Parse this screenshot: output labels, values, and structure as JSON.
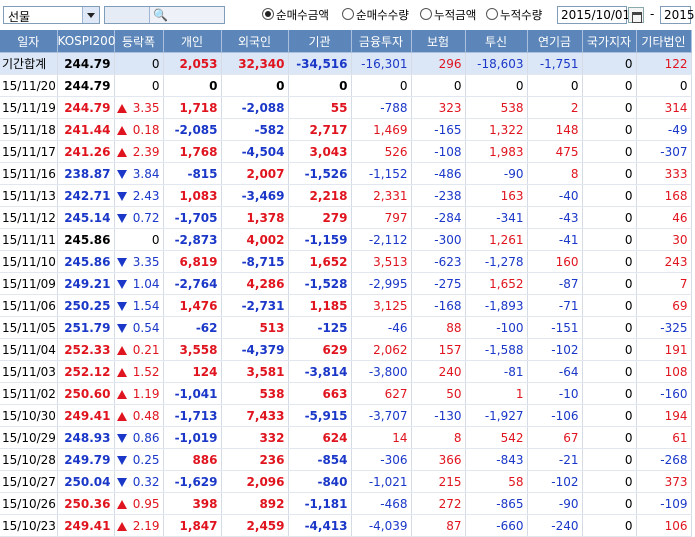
{
  "toolbar": {
    "market_select": "선물",
    "radios": [
      {
        "label": "순매수금액",
        "selected": true
      },
      {
        "label": "순매수수량",
        "selected": false
      },
      {
        "label": "누적금액",
        "selected": false
      },
      {
        "label": "누적수량",
        "selected": false
      }
    ],
    "start_date": "2015/10/01",
    "end_date": "2015"
  },
  "colors": {
    "header_bg": "#5c86b9",
    "up": "#e0141e",
    "down": "#1a37c8",
    "total_row_bg": "#dbe7f6"
  },
  "table": {
    "headers": [
      "일자",
      "KOSPI200",
      "등락폭",
      "개인",
      "외국인",
      "기관",
      "금융투자",
      "보험",
      "투신",
      "연기금",
      "국가지자",
      "기타법인"
    ],
    "rows": [
      {
        "date": "기간합계",
        "kospi": "244.79",
        "dir": "",
        "chg": "0",
        "ind": "2,053",
        "frn": "32,340",
        "inst": "-34,516",
        "fin": "-16,301",
        "ins": "296",
        "trust": "-18,603",
        "pen": "-1,751",
        "gov": "0",
        "etc": "122",
        "total": true
      },
      {
        "date": "15/11/20",
        "kospi": "244.79",
        "dir": "",
        "chg": "0",
        "ind": "0",
        "frn": "0",
        "inst": "0",
        "fin": "0",
        "ins": "0",
        "trust": "0",
        "pen": "0",
        "gov": "0",
        "etc": "0"
      },
      {
        "date": "15/11/19",
        "kospi": "244.79",
        "dir": "up",
        "chg": "3.35",
        "ind": "1,718",
        "frn": "-2,088",
        "inst": "55",
        "fin": "-788",
        "ins": "323",
        "trust": "538",
        "pen": "2",
        "gov": "0",
        "etc": "314"
      },
      {
        "date": "15/11/18",
        "kospi": "241.44",
        "dir": "up",
        "chg": "0.18",
        "ind": "-2,085",
        "frn": "-582",
        "inst": "2,717",
        "fin": "1,469",
        "ins": "-165",
        "trust": "1,322",
        "pen": "148",
        "gov": "0",
        "etc": "-49"
      },
      {
        "date": "15/11/17",
        "kospi": "241.26",
        "dir": "up",
        "chg": "2.39",
        "ind": "1,768",
        "frn": "-4,504",
        "inst": "3,043",
        "fin": "526",
        "ins": "-108",
        "trust": "1,983",
        "pen": "475",
        "gov": "0",
        "etc": "-307"
      },
      {
        "date": "15/11/16",
        "kospi": "238.87",
        "dir": "dn",
        "chg": "3.84",
        "ind": "-815",
        "frn": "2,007",
        "inst": "-1,526",
        "fin": "-1,152",
        "ins": "-486",
        "trust": "-90",
        "pen": "8",
        "gov": "0",
        "etc": "333"
      },
      {
        "date": "15/11/13",
        "kospi": "242.71",
        "dir": "dn",
        "chg": "2.43",
        "ind": "1,083",
        "frn": "-3,469",
        "inst": "2,218",
        "fin": "2,331",
        "ins": "-238",
        "trust": "163",
        "pen": "-40",
        "gov": "0",
        "etc": "168"
      },
      {
        "date": "15/11/12",
        "kospi": "245.14",
        "dir": "dn",
        "chg": "0.72",
        "ind": "-1,705",
        "frn": "1,378",
        "inst": "279",
        "fin": "797",
        "ins": "-284",
        "trust": "-341",
        "pen": "-43",
        "gov": "0",
        "etc": "46"
      },
      {
        "date": "15/11/11",
        "kospi": "245.86",
        "dir": "",
        "chg": "0",
        "ind": "-2,873",
        "frn": "4,002",
        "inst": "-1,159",
        "fin": "-2,112",
        "ins": "-300",
        "trust": "1,261",
        "pen": "-41",
        "gov": "0",
        "etc": "30"
      },
      {
        "date": "15/11/10",
        "kospi": "245.86",
        "dir": "dn",
        "chg": "3.35",
        "ind": "6,819",
        "frn": "-8,715",
        "inst": "1,652",
        "fin": "3,513",
        "ins": "-623",
        "trust": "-1,278",
        "pen": "160",
        "gov": "0",
        "etc": "243"
      },
      {
        "date": "15/11/09",
        "kospi": "249.21",
        "dir": "dn",
        "chg": "1.04",
        "ind": "-2,764",
        "frn": "4,286",
        "inst": "-1,528",
        "fin": "-2,995",
        "ins": "-275",
        "trust": "1,652",
        "pen": "-87",
        "gov": "0",
        "etc": "7"
      },
      {
        "date": "15/11/06",
        "kospi": "250.25",
        "dir": "dn",
        "chg": "1.54",
        "ind": "1,476",
        "frn": "-2,731",
        "inst": "1,185",
        "fin": "3,125",
        "ins": "-168",
        "trust": "-1,893",
        "pen": "-71",
        "gov": "0",
        "etc": "69"
      },
      {
        "date": "15/11/05",
        "kospi": "251.79",
        "dir": "dn",
        "chg": "0.54",
        "ind": "-62",
        "frn": "513",
        "inst": "-125",
        "fin": "-46",
        "ins": "88",
        "trust": "-100",
        "pen": "-151",
        "gov": "0",
        "etc": "-325"
      },
      {
        "date": "15/11/04",
        "kospi": "252.33",
        "dir": "up",
        "chg": "0.21",
        "ind": "3,558",
        "frn": "-4,379",
        "inst": "629",
        "fin": "2,062",
        "ins": "157",
        "trust": "-1,588",
        "pen": "-102",
        "gov": "0",
        "etc": "191"
      },
      {
        "date": "15/11/03",
        "kospi": "252.12",
        "dir": "up",
        "chg": "1.52",
        "ind": "124",
        "frn": "3,581",
        "inst": "-3,814",
        "fin": "-3,800",
        "ins": "240",
        "trust": "-81",
        "pen": "-64",
        "gov": "0",
        "etc": "108"
      },
      {
        "date": "15/11/02",
        "kospi": "250.60",
        "dir": "up",
        "chg": "1.19",
        "ind": "-1,041",
        "frn": "538",
        "inst": "663",
        "fin": "627",
        "ins": "50",
        "trust": "1",
        "pen": "-10",
        "gov": "0",
        "etc": "-160"
      },
      {
        "date": "15/10/30",
        "kospi": "249.41",
        "dir": "up",
        "chg": "0.48",
        "ind": "-1,713",
        "frn": "7,433",
        "inst": "-5,915",
        "fin": "-3,707",
        "ins": "-130",
        "trust": "-1,927",
        "pen": "-106",
        "gov": "0",
        "etc": "194"
      },
      {
        "date": "15/10/29",
        "kospi": "248.93",
        "dir": "dn",
        "chg": "0.86",
        "ind": "-1,019",
        "frn": "332",
        "inst": "624",
        "fin": "14",
        "ins": "8",
        "trust": "542",
        "pen": "67",
        "gov": "0",
        "etc": "61"
      },
      {
        "date": "15/10/28",
        "kospi": "249.79",
        "dir": "dn",
        "chg": "0.25",
        "ind": "886",
        "frn": "236",
        "inst": "-854",
        "fin": "-306",
        "ins": "366",
        "trust": "-843",
        "pen": "-21",
        "gov": "0",
        "etc": "-268"
      },
      {
        "date": "15/10/27",
        "kospi": "250.04",
        "dir": "dn",
        "chg": "0.32",
        "ind": "-1,629",
        "frn": "2,096",
        "inst": "-840",
        "fin": "-1,021",
        "ins": "215",
        "trust": "58",
        "pen": "-102",
        "gov": "0",
        "etc": "373"
      },
      {
        "date": "15/10/26",
        "kospi": "250.36",
        "dir": "up",
        "chg": "0.95",
        "ind": "398",
        "frn": "892",
        "inst": "-1,181",
        "fin": "-468",
        "ins": "272",
        "trust": "-865",
        "pen": "-90",
        "gov": "0",
        "etc": "-109"
      },
      {
        "date": "15/10/23",
        "kospi": "249.41",
        "dir": "up",
        "chg": "2.19",
        "ind": "1,847",
        "frn": "2,459",
        "inst": "-4,413",
        "fin": "-4,039",
        "ins": "87",
        "trust": "-660",
        "pen": "-240",
        "gov": "0",
        "etc": "106"
      }
    ]
  }
}
